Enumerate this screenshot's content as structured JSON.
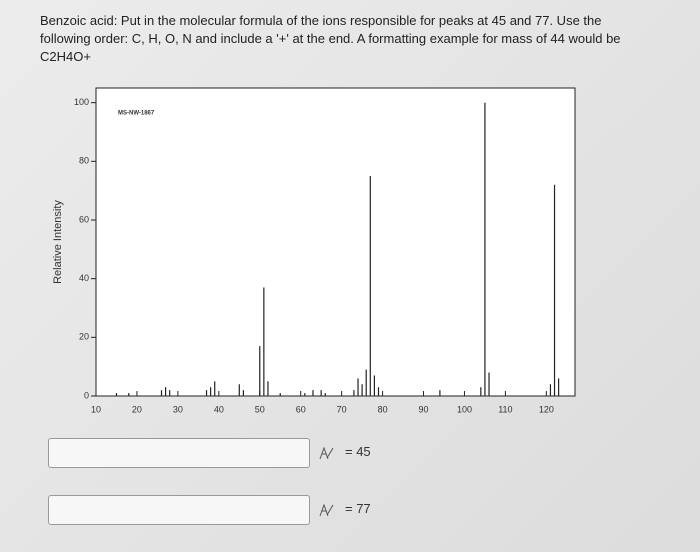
{
  "question": "Benzoic acid: Put in the molecular formula of the ions responsible for peaks at 45 and 77. Use the following order: C, H, O, N and include a '+' at the end. A formatting example for mass of 44 would be C2H4O+",
  "chart_data": {
    "type": "bar",
    "y_label": "Relative Intensity",
    "annotation": "MS-NW-1867",
    "x": [
      15,
      18,
      26,
      27,
      28,
      37,
      38,
      39,
      45,
      46,
      50,
      51,
      52,
      55,
      61,
      63,
      65,
      66,
      73,
      74,
      75,
      76,
      77,
      78,
      79,
      94,
      104,
      105,
      106,
      121,
      122,
      123
    ],
    "values": [
      1,
      1,
      2,
      3,
      2,
      2,
      3,
      5,
      4,
      2,
      17,
      37,
      5,
      1,
      1,
      2,
      2,
      1,
      2,
      6,
      4,
      9,
      75,
      7,
      3,
      2,
      3,
      100,
      8,
      4,
      72,
      6
    ],
    "color": "#222222",
    "xlim": [
      10,
      127
    ],
    "ylim": [
      0,
      105
    ],
    "xticks": [
      10,
      20,
      30,
      40,
      50,
      60,
      70,
      80,
      90,
      100,
      110,
      120
    ],
    "yticks": [
      0,
      20,
      40,
      60,
      80,
      100
    ]
  },
  "answers": [
    {
      "label": "= 45"
    },
    {
      "label": "= 77"
    }
  ]
}
